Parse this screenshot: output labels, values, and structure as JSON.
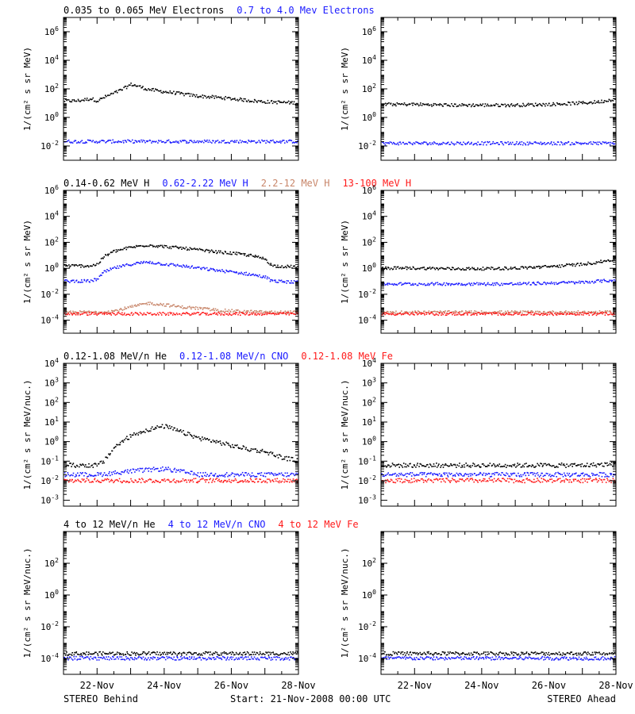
{
  "figure": {
    "left_caption": "STEREO Behind",
    "center_caption": "Start: 21-Nov-2008 00:00 UTC",
    "right_caption": "STEREO Ahead",
    "x_tick_labels": [
      "22-Nov",
      "24-Nov",
      "26-Nov",
      "28-Nov"
    ]
  },
  "colors": {
    "black": "#000000",
    "blue": "#1a1aff",
    "tan": "#c8866a",
    "red": "#ff1a1a"
  },
  "chart_data": [
    {
      "type": "scatter",
      "id": "electrons",
      "title_segments": [
        {
          "text": "0.035 to 0.065 MeV Electrons",
          "color": "black"
        },
        {
          "text": "0.7 to 4.0 Mev Electrons",
          "color": "blue"
        }
      ],
      "ylabel": "1/(cm² s sr MeV)",
      "yscale": "log",
      "ylim_exp": [
        -3,
        7
      ],
      "yticks_exp": [
        -2,
        0,
        2,
        4,
        6
      ],
      "xlim_days": [
        0,
        7
      ],
      "x_ticks_days": [
        1,
        3,
        5,
        7
      ],
      "behind": [
        {
          "name": "0.035 to 0.065 MeV Electrons",
          "color": "black",
          "x_days": [
            0.0,
            0.3,
            0.5,
            0.8,
            1.0,
            1.2,
            1.5,
            1.7,
            2.0,
            2.2,
            2.5,
            2.8,
            3.0,
            3.3,
            3.6,
            4.0,
            4.5,
            5.0,
            5.5,
            6.0,
            6.5,
            7.0
          ],
          "y": [
            14,
            14,
            15,
            20,
            14,
            25,
            50,
            80,
            200,
            150,
            90,
            70,
            60,
            50,
            40,
            30,
            25,
            20,
            15,
            12,
            11,
            10
          ]
        },
        {
          "name": "0.7 to 4.0 Mev Electrons",
          "color": "blue",
          "x_days": [
            0,
            1,
            2,
            3,
            4,
            5,
            6,
            7
          ],
          "y": [
            0.02,
            0.02,
            0.02,
            0.02,
            0.02,
            0.02,
            0.02,
            0.02
          ]
        }
      ],
      "ahead": [
        {
          "name": "0.035 to 0.065 MeV Electrons",
          "color": "black",
          "x_days": [
            0,
            1,
            2,
            3,
            4,
            5,
            6,
            6.5,
            7
          ],
          "y": [
            8,
            8,
            7,
            7,
            7,
            8,
            10,
            12,
            20
          ]
        },
        {
          "name": "0.7 to 4.0 Mev Electrons",
          "color": "blue",
          "x_days": [
            0,
            1,
            2,
            3,
            4,
            5,
            6,
            7
          ],
          "y": [
            0.015,
            0.015,
            0.015,
            0.015,
            0.015,
            0.015,
            0.015,
            0.015
          ]
        }
      ]
    },
    {
      "type": "scatter",
      "id": "protons",
      "title_segments": [
        {
          "text": "0.14-0.62 MeV H",
          "color": "black"
        },
        {
          "text": "0.62-2.22 MeV H",
          "color": "blue"
        },
        {
          "text": "2.2-12 MeV H",
          "color": "tan"
        },
        {
          "text": "13-100 MeV H",
          "color": "red"
        }
      ],
      "ylabel": "1/(cm² s sr MeV)",
      "yscale": "log",
      "ylim_exp": [
        -5,
        6
      ],
      "yticks_exp": [
        -4,
        -2,
        0,
        2,
        4,
        6
      ],
      "xlim_days": [
        0,
        7
      ],
      "x_ticks_days": [
        1,
        3,
        5,
        7
      ],
      "behind": [
        {
          "name": "0.14-0.62 MeV H",
          "color": "black",
          "x_days": [
            0.0,
            0.8,
            1.0,
            1.2,
            1.5,
            2.0,
            2.5,
            3.0,
            3.5,
            4.0,
            4.5,
            5.0,
            5.5,
            6.0,
            6.2,
            7.0
          ],
          "y": [
            1.5,
            1.5,
            2,
            8,
            20,
            40,
            60,
            45,
            35,
            25,
            18,
            14,
            10,
            5,
            1.5,
            1.2
          ]
        },
        {
          "name": "0.62-2.22 MeV H",
          "color": "blue",
          "x_days": [
            0.0,
            0.8,
            1.0,
            1.2,
            1.5,
            2.0,
            2.5,
            3.0,
            3.5,
            4.0,
            4.5,
            5.0,
            5.5,
            6.0,
            6.2,
            7.0
          ],
          "y": [
            0.1,
            0.1,
            0.15,
            0.5,
            1,
            2,
            3,
            2,
            1.5,
            1,
            0.7,
            0.5,
            0.35,
            0.2,
            0.1,
            0.08
          ]
        },
        {
          "name": "2.2-12 MeV H",
          "color": "tan",
          "x_days": [
            0.0,
            1.0,
            1.5,
            2.0,
            2.5,
            3.0,
            3.5,
            4.0,
            4.5,
            5.0,
            6.0,
            7.0
          ],
          "y": [
            0.0004,
            0.0004,
            0.0005,
            0.001,
            0.002,
            0.0015,
            0.001,
            0.0008,
            0.0006,
            0.0005,
            0.0004,
            0.0004
          ]
        },
        {
          "name": "13-100 MeV H",
          "color": "red",
          "x_days": [
            0,
            1,
            2,
            3,
            4,
            5,
            6,
            7
          ],
          "y": [
            0.0003,
            0.0003,
            0.0003,
            0.0003,
            0.0003,
            0.0003,
            0.0003,
            0.0003
          ]
        }
      ],
      "ahead": [
        {
          "name": "0.14-0.62 MeV H",
          "color": "black",
          "x_days": [
            0,
            1,
            2,
            3,
            4,
            5,
            6,
            6.5,
            7
          ],
          "y": [
            1,
            1,
            0.9,
            0.9,
            1,
            1.3,
            2,
            3,
            5
          ]
        },
        {
          "name": "0.62-2.22 MeV H",
          "color": "blue",
          "x_days": [
            0,
            1,
            2,
            3,
            4,
            5,
            6,
            6.5,
            7
          ],
          "y": [
            0.06,
            0.06,
            0.06,
            0.06,
            0.06,
            0.07,
            0.08,
            0.1,
            0.12
          ]
        },
        {
          "name": "2.2-12 MeV H",
          "color": "tan",
          "x_days": [
            0,
            1,
            2,
            3,
            4,
            5,
            6,
            7
          ],
          "y": [
            0.0004,
            0.0004,
            0.0004,
            0.0004,
            0.0004,
            0.0004,
            0.0004,
            0.0004
          ]
        },
        {
          "name": "13-100 MeV H",
          "color": "red",
          "x_days": [
            0,
            1,
            2,
            3,
            4,
            5,
            6,
            7
          ],
          "y": [
            0.0003,
            0.0003,
            0.0003,
            0.0003,
            0.0003,
            0.0003,
            0.0003,
            0.0003
          ]
        }
      ]
    },
    {
      "type": "scatter",
      "id": "heavy_low",
      "title_segments": [
        {
          "text": "0.12-1.08 MeV/n He",
          "color": "black"
        },
        {
          "text": "0.12-1.08 MeV/n CNO",
          "color": "blue"
        },
        {
          "text": "0.12-1.08 MeV Fe",
          "color": "red"
        }
      ],
      "ylabel": "1/(cm² s sr MeV/nuc.)",
      "yscale": "log",
      "ylim_exp": [
        -3.3,
        4
      ],
      "yticks_exp": [
        -3,
        -2,
        -1,
        0,
        1,
        2,
        3,
        4
      ],
      "xlim_days": [
        0,
        7
      ],
      "x_ticks_days": [
        1,
        3,
        5,
        7
      ],
      "behind": [
        {
          "name": "0.12-1.08 MeV/n He",
          "color": "black",
          "x_days": [
            0.0,
            1.0,
            1.2,
            1.5,
            2.0,
            2.5,
            3.0,
            3.5,
            4.0,
            4.5,
            5.0,
            5.5,
            6.0,
            6.5,
            7.0
          ],
          "y": [
            0.06,
            0.06,
            0.1,
            0.5,
            2,
            4,
            6,
            3,
            1.5,
            1,
            0.6,
            0.4,
            0.3,
            0.15,
            0.1
          ]
        },
        {
          "name": "0.12-1.08 MeV/n CNO",
          "color": "blue",
          "x_days": [
            0,
            1,
            2,
            3,
            4,
            5,
            6,
            7
          ],
          "y": [
            0.02,
            0.02,
            0.03,
            0.04,
            0.02,
            0.02,
            0.02,
            0.02
          ]
        },
        {
          "name": "0.12-1.08 MeV Fe",
          "color": "red",
          "x_days": [
            0,
            1,
            2,
            3,
            4,
            5,
            6,
            7
          ],
          "y": [
            0.01,
            0.01,
            0.01,
            0.01,
            0.01,
            0.01,
            0.01,
            0.01
          ]
        }
      ],
      "ahead": [
        {
          "name": "0.12-1.08 MeV/n He",
          "color": "black",
          "x_days": [
            0,
            1,
            2,
            3,
            4,
            5,
            6,
            7
          ],
          "y": [
            0.06,
            0.06,
            0.06,
            0.06,
            0.06,
            0.06,
            0.06,
            0.07
          ]
        },
        {
          "name": "0.12-1.08 MeV/n CNO",
          "color": "blue",
          "x_days": [
            0,
            1,
            2,
            3,
            4,
            5,
            6,
            7
          ],
          "y": [
            0.02,
            0.02,
            0.02,
            0.02,
            0.02,
            0.02,
            0.02,
            0.02
          ]
        },
        {
          "name": "0.12-1.08 MeV Fe",
          "color": "red",
          "x_days": [
            0,
            1,
            2,
            3,
            4,
            5,
            6,
            7
          ],
          "y": [
            0.01,
            0.01,
            0.01,
            0.01,
            0.01,
            0.01,
            0.01,
            0.01
          ]
        }
      ]
    },
    {
      "type": "scatter",
      "id": "heavy_high",
      "title_segments": [
        {
          "text": "4 to 12 MeV/n He",
          "color": "black"
        },
        {
          "text": "4 to 12 MeV/n CNO",
          "color": "blue"
        },
        {
          "text": "4 to 12 MeV Fe",
          "color": "red"
        }
      ],
      "ylabel": "1/(cm² s sr MeV/nuc.)",
      "yscale": "log",
      "ylim_exp": [
        -5,
        4
      ],
      "yticks_exp": [
        -4,
        -2,
        0,
        2
      ],
      "xlim_days": [
        0,
        7
      ],
      "x_ticks_days": [
        1,
        3,
        5,
        7
      ],
      "behind": [
        {
          "name": "4 to 12 MeV/n He",
          "color": "black",
          "x_days": [
            0,
            1,
            2,
            3,
            4,
            5,
            6,
            7
          ],
          "y": [
            0.0002,
            0.0002,
            0.0002,
            0.0002,
            0.0002,
            0.0002,
            0.0002,
            0.0002
          ]
        },
        {
          "name": "4 to 12 MeV/n CNO",
          "color": "blue",
          "x_days": [
            0,
            1,
            2,
            3,
            4,
            5,
            6,
            7
          ],
          "y": [
            0.0001,
            0.0001,
            0.0001,
            0.0001,
            0.0001,
            0.0001,
            0.0001,
            0.0001
          ]
        }
      ],
      "ahead": [
        {
          "name": "4 to 12 MeV/n He",
          "color": "black",
          "x_days": [
            0,
            1,
            2,
            3,
            4,
            5,
            6,
            7
          ],
          "y": [
            0.0002,
            0.0002,
            0.0002,
            0.0002,
            0.0002,
            0.0002,
            0.0002,
            0.0002
          ]
        },
        {
          "name": "4 to 12 MeV/n CNO",
          "color": "blue",
          "x_days": [
            0,
            1,
            2,
            3,
            4,
            5,
            6,
            7
          ],
          "y": [
            0.0001,
            0.0001,
            0.0001,
            0.0001,
            0.0001,
            0.0001,
            0.0001,
            0.0001
          ]
        }
      ]
    }
  ]
}
